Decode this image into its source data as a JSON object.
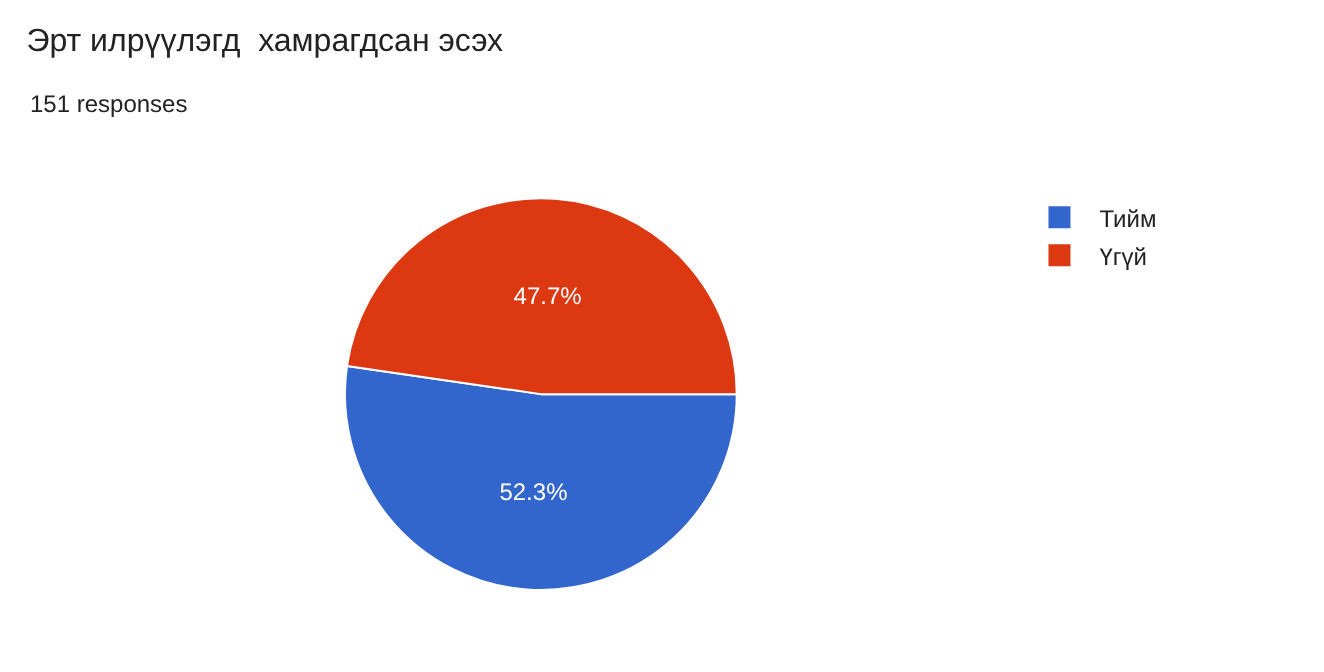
{
  "chart_data": {
    "type": "pie",
    "title": "Эрт илрүүлэгд  хамрагдсан эсэх",
    "subtitle": "151 responses",
    "categories": [
      "Тийм",
      "Үгүй"
    ],
    "values": [
      52.3,
      47.7
    ],
    "colors": [
      "#3366cc",
      "#dc3912"
    ],
    "value_labels": [
      "52.3%",
      "47.7%"
    ],
    "legend": "top right"
  }
}
